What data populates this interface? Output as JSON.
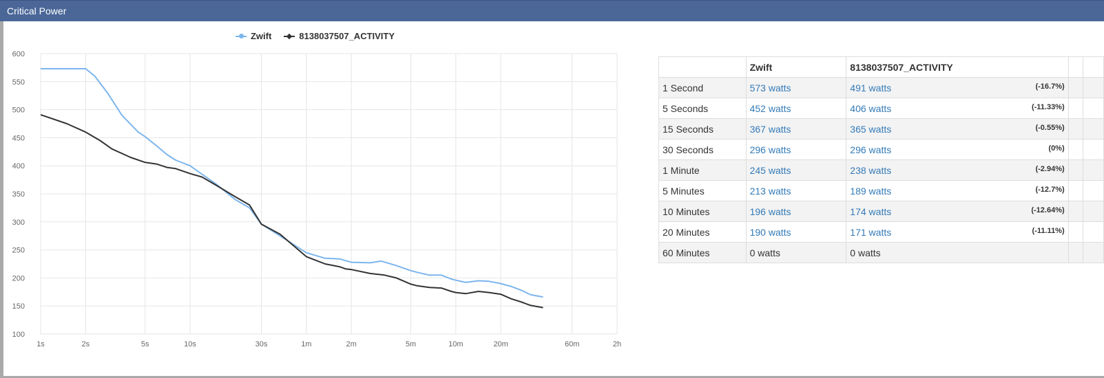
{
  "header": {
    "title": "Critical Power"
  },
  "colors": {
    "zwift": "#7cb5ec",
    "activity": "#333333",
    "header": "#4a6798"
  },
  "chart_data": {
    "type": "line",
    "x_scale": "log",
    "x_unit": "seconds",
    "x_ticks": [
      {
        "label": "1s",
        "value": 1
      },
      {
        "label": "2s",
        "value": 2
      },
      {
        "label": "5s",
        "value": 5
      },
      {
        "label": "10s",
        "value": 10
      },
      {
        "label": "30s",
        "value": 30
      },
      {
        "label": "1m",
        "value": 60
      },
      {
        "label": "2m",
        "value": 120
      },
      {
        "label": "5m",
        "value": 300
      },
      {
        "label": "10m",
        "value": 600
      },
      {
        "label": "20m",
        "value": 1200
      },
      {
        "label": "60m",
        "value": 3600
      },
      {
        "label": "2h",
        "value": 7200
      }
    ],
    "y_ticks": [
      100,
      150,
      200,
      250,
      300,
      350,
      400,
      450,
      500,
      550,
      600
    ],
    "ylim": [
      100,
      600
    ],
    "grid": true,
    "legend_position": "top-center",
    "series": [
      {
        "name": "Zwift",
        "color": "#7cb5ec",
        "marker": "circle",
        "points": [
          [
            1,
            573
          ],
          [
            2,
            573
          ],
          [
            2.3,
            560
          ],
          [
            2.8,
            530
          ],
          [
            3.5,
            490
          ],
          [
            4.5,
            460
          ],
          [
            5,
            452
          ],
          [
            6,
            435
          ],
          [
            7,
            420
          ],
          [
            8,
            410
          ],
          [
            10,
            400
          ],
          [
            12,
            385
          ],
          [
            15,
            367
          ],
          [
            20,
            340
          ],
          [
            25,
            325
          ],
          [
            30,
            296
          ],
          [
            40,
            275
          ],
          [
            60,
            245
          ],
          [
            80,
            235
          ],
          [
            100,
            234
          ],
          [
            120,
            228
          ],
          [
            160,
            227
          ],
          [
            190,
            230
          ],
          [
            240,
            222
          ],
          [
            300,
            213
          ],
          [
            330,
            210
          ],
          [
            400,
            205
          ],
          [
            480,
            205
          ],
          [
            560,
            198
          ],
          [
            600,
            196
          ],
          [
            700,
            192
          ],
          [
            850,
            195
          ],
          [
            1000,
            194
          ],
          [
            1200,
            190
          ],
          [
            1400,
            185
          ],
          [
            1650,
            178
          ],
          [
            1900,
            170
          ],
          [
            2300,
            166
          ]
        ]
      },
      {
        "name": "8138037507_ACTIVITY",
        "color": "#333333",
        "marker": "diamond",
        "points": [
          [
            1,
            491
          ],
          [
            1.5,
            475
          ],
          [
            2,
            460
          ],
          [
            2.5,
            445
          ],
          [
            3,
            430
          ],
          [
            4,
            415
          ],
          [
            5,
            406
          ],
          [
            6,
            403
          ],
          [
            7,
            397
          ],
          [
            8,
            395
          ],
          [
            10,
            386
          ],
          [
            12,
            380
          ],
          [
            15,
            365
          ],
          [
            20,
            345
          ],
          [
            25,
            330
          ],
          [
            30,
            296
          ],
          [
            40,
            278
          ],
          [
            60,
            238
          ],
          [
            80,
            225
          ],
          [
            100,
            220
          ],
          [
            110,
            216
          ],
          [
            120,
            215
          ],
          [
            160,
            208
          ],
          [
            200,
            205
          ],
          [
            240,
            200
          ],
          [
            300,
            189
          ],
          [
            330,
            186
          ],
          [
            400,
            183
          ],
          [
            480,
            182
          ],
          [
            560,
            176
          ],
          [
            600,
            174
          ],
          [
            700,
            172
          ],
          [
            850,
            176
          ],
          [
            1000,
            174
          ],
          [
            1200,
            171
          ],
          [
            1400,
            163
          ],
          [
            1650,
            157
          ],
          [
            1900,
            151
          ],
          [
            2300,
            147
          ]
        ]
      }
    ]
  },
  "table": {
    "headers": [
      "",
      "Zwift",
      "8138037507_ACTIVITY",
      "",
      ""
    ],
    "rows": [
      {
        "label": "1 Second",
        "zwift": "573 watts",
        "activity": "491 watts",
        "diff": "(-16.7%)"
      },
      {
        "label": "5 Seconds",
        "zwift": "452 watts",
        "activity": "406 watts",
        "diff": "(-11.33%)"
      },
      {
        "label": "15 Seconds",
        "zwift": "367 watts",
        "activity": "365 watts",
        "diff": "(-0.55%)"
      },
      {
        "label": "30 Seconds",
        "zwift": "296 watts",
        "activity": "296 watts",
        "diff": "(0%)"
      },
      {
        "label": "1 Minute",
        "zwift": "245 watts",
        "activity": "238 watts",
        "diff": "(-2.94%)"
      },
      {
        "label": "5 Minutes",
        "zwift": "213 watts",
        "activity": "189 watts",
        "diff": "(-12.7%)"
      },
      {
        "label": "10 Minutes",
        "zwift": "196 watts",
        "activity": "174 watts",
        "diff": "(-12.64%)"
      },
      {
        "label": "20 Minutes",
        "zwift": "190 watts",
        "activity": "171 watts",
        "diff": "(-11.11%)"
      },
      {
        "label": "60 Minutes",
        "zwift": "0 watts",
        "activity": "0 watts",
        "diff": ""
      }
    ]
  }
}
